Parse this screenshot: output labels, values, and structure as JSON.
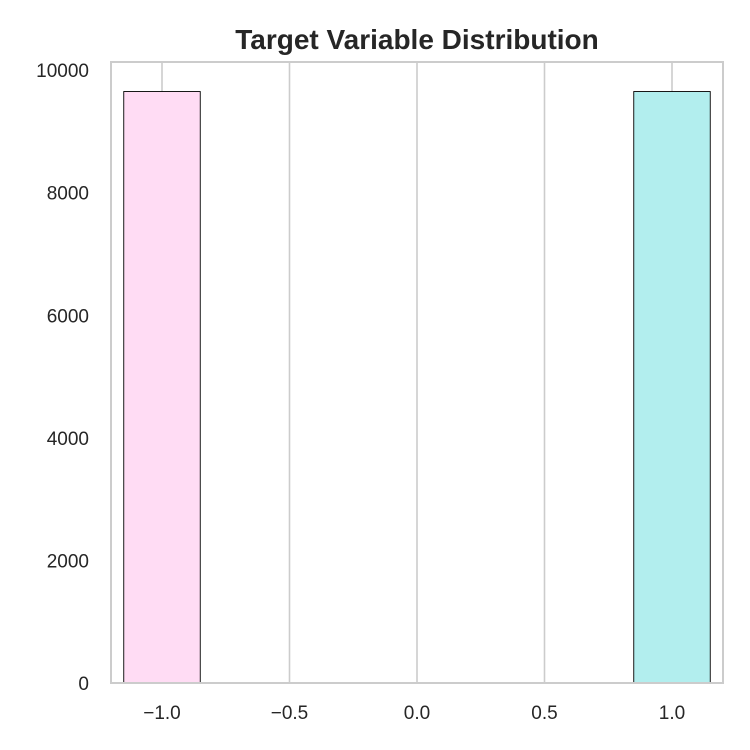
{
  "chart_data": {
    "type": "bar",
    "title": "Target Variable Distribution",
    "xlabel": "",
    "ylabel": "",
    "x": [
      -1.0,
      1.0
    ],
    "values": [
      9650,
      9650
    ],
    "bar_width": 0.3,
    "colors": [
      "#ffdcf4",
      "#b2eeee"
    ],
    "xlim": [
      -1.2,
      1.2
    ],
    "ylim": [
      0,
      10132
    ],
    "xticks": [
      -1.0,
      -0.5,
      0.0,
      0.5,
      1.0
    ],
    "xtick_labels": [
      "−1.0",
      "−0.5",
      "0.0",
      "0.5",
      "1.0"
    ],
    "yticks": [
      0,
      2000,
      4000,
      6000,
      8000,
      10000
    ],
    "ytick_labels": [
      "0",
      "2000",
      "4000",
      "6000",
      "8000",
      "10000"
    ],
    "grid": "vertical",
    "legend": "none"
  }
}
